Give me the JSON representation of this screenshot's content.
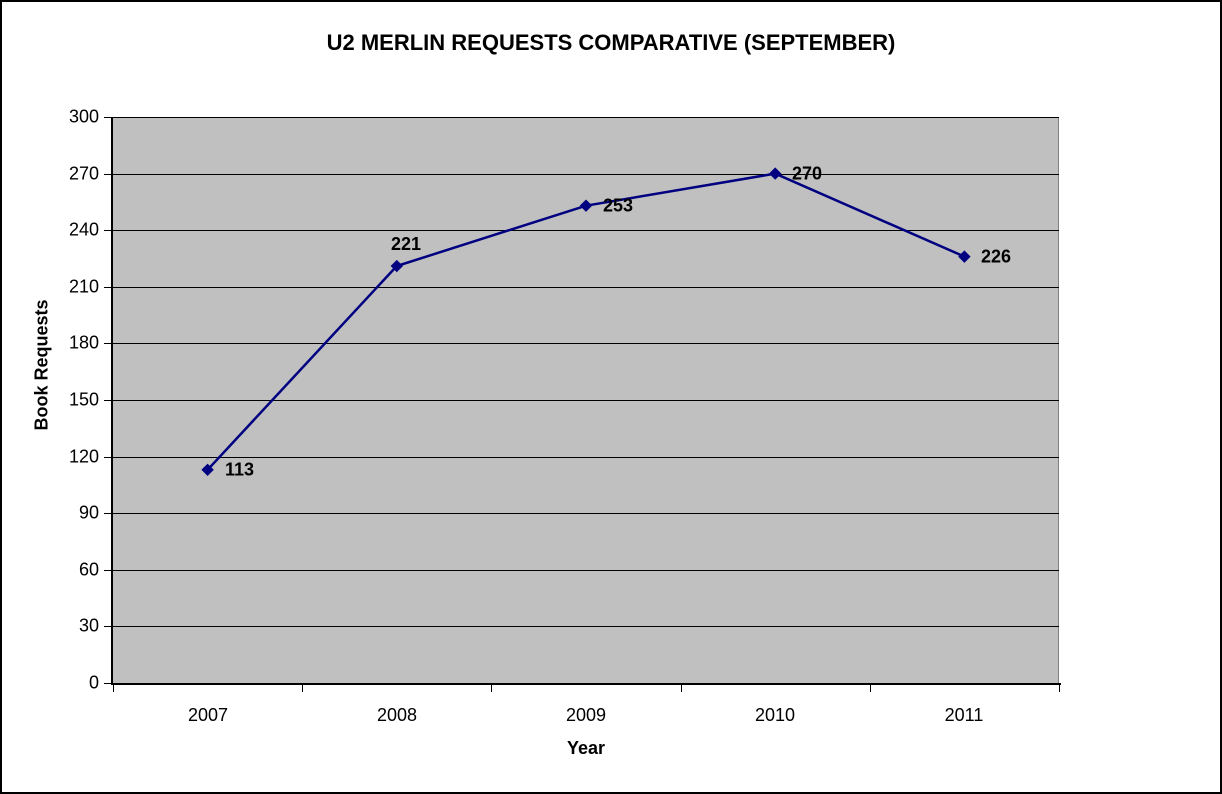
{
  "chart_data": {
    "type": "line",
    "title": "U2 MERLIN REQUESTS COMPARATIVE (SEPTEMBER)",
    "xlabel": "Year",
    "ylabel": "Book Requests",
    "categories": [
      "2007",
      "2008",
      "2009",
      "2010",
      "2011"
    ],
    "values": [
      113,
      221,
      253,
      270,
      226
    ],
    "data_labels": [
      "113",
      "221",
      "253",
      "270",
      "226"
    ],
    "label_positions": [
      "right",
      "above",
      "right",
      "right",
      "right"
    ],
    "yticks": [
      0,
      30,
      60,
      90,
      120,
      150,
      180,
      210,
      240,
      270,
      300
    ],
    "ylim": [
      0,
      300
    ],
    "grid": true,
    "legend": "none",
    "colors": {
      "line": "#000080",
      "marker": "#000080",
      "plot_bg": "#c0c0c0",
      "gridline": "#000000",
      "axis": "#000000",
      "text": "#000000",
      "plot_border": "#808080",
      "canvas_bg": "#ffffff",
      "canvas_border": "#000000"
    }
  }
}
